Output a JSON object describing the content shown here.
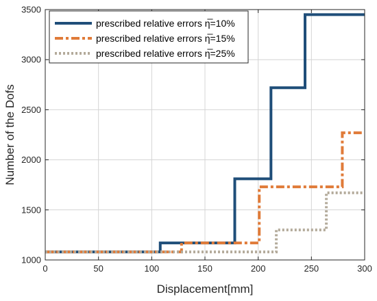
{
  "chart_data": {
    "type": "line",
    "step": true,
    "xlabel": "Displacement[mm]",
    "ylabel": "Number of the  Dofs",
    "xlim": [
      0,
      300
    ],
    "ylim": [
      1000,
      3500
    ],
    "x_ticks": [
      0,
      50,
      100,
      150,
      200,
      250,
      300
    ],
    "y_ticks": [
      1000,
      1500,
      2000,
      2500,
      3000,
      3500
    ],
    "grid": true,
    "legend_position": "top-left",
    "series": [
      {
        "name": "prescribed relative errors η̅=10%",
        "color": "#1f4e79",
        "line_style": "solid",
        "points": [
          [
            0,
            1080
          ],
          [
            108,
            1080
          ],
          [
            108,
            1170
          ],
          [
            178,
            1170
          ],
          [
            178,
            1810
          ],
          [
            212,
            1810
          ],
          [
            212,
            2720
          ],
          [
            244,
            2720
          ],
          [
            244,
            3450
          ],
          [
            300,
            3450
          ]
        ]
      },
      {
        "name": "prescribed relative errors η̅=15%",
        "color": "#e07b39",
        "line_style": "dash-dot",
        "points": [
          [
            0,
            1080
          ],
          [
            128,
            1080
          ],
          [
            128,
            1170
          ],
          [
            201,
            1170
          ],
          [
            201,
            1730
          ],
          [
            279,
            1730
          ],
          [
            279,
            2270
          ],
          [
            300,
            2270
          ]
        ]
      },
      {
        "name": "prescribed relative errors η̅=25%",
        "color": "#b3aa9a",
        "line_style": "dotted",
        "points": [
          [
            0,
            1080
          ],
          [
            217,
            1080
          ],
          [
            217,
            1300
          ],
          [
            264,
            1300
          ],
          [
            264,
            1670
          ],
          [
            300,
            1670
          ]
        ]
      }
    ]
  }
}
